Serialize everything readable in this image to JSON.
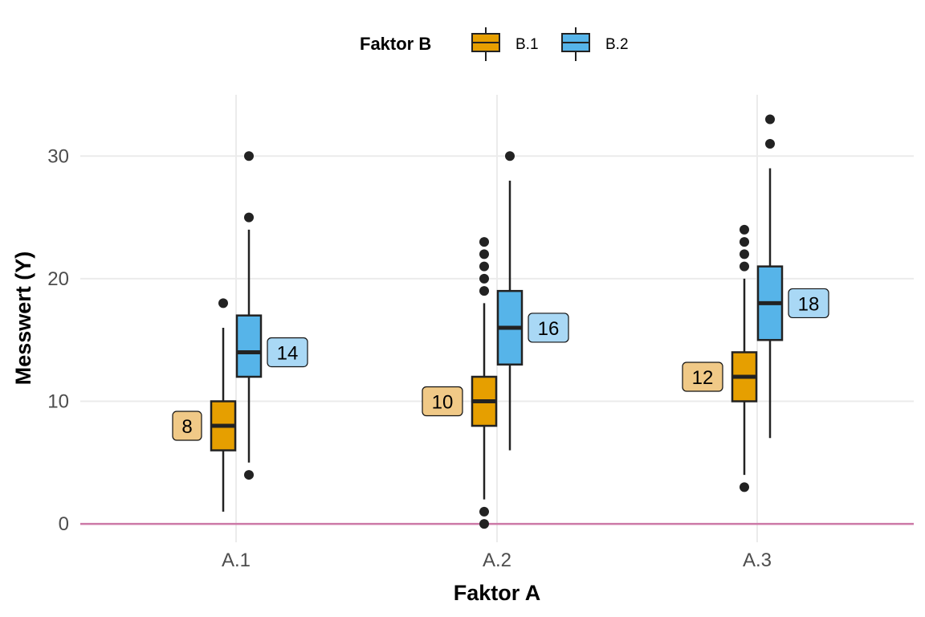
{
  "chart_data": {
    "type": "boxplot",
    "xlabel": "Faktor A",
    "ylabel": "Messwert (Y)",
    "categories": [
      "A.1",
      "A.2",
      "A.3"
    ],
    "ylim": [
      -1.5,
      35
    ],
    "yticks": [
      0,
      10,
      20,
      30
    ],
    "reference_line": 0,
    "grid": true,
    "legend": {
      "title": "Faktor B",
      "position": "top",
      "entries": [
        "B.1",
        "B.2"
      ]
    },
    "colors": {
      "B.1": "#E69F00",
      "B.2": "#56B4E9",
      "B.1_label": "#F0C987",
      "B.2_label": "#A9D8F5",
      "reference_line": "#CC79A7",
      "grid": "#EBEBEB"
    },
    "series": [
      {
        "name": "B.1",
        "boxes": [
          {
            "category": "A.1",
            "min": 1,
            "q1": 6,
            "median": 8,
            "q3": 10,
            "max": 16,
            "outliers": [
              18
            ],
            "label": "8"
          },
          {
            "category": "A.2",
            "min": 2,
            "q1": 8,
            "median": 10,
            "q3": 12,
            "max": 18,
            "outliers": [
              19,
              20,
              21,
              22,
              23,
              1,
              0
            ],
            "label": "10"
          },
          {
            "category": "A.3",
            "min": 4,
            "q1": 10,
            "median": 12,
            "q3": 14,
            "max": 20,
            "outliers": [
              21,
              22,
              23,
              24,
              3
            ],
            "label": "12"
          }
        ]
      },
      {
        "name": "B.2",
        "boxes": [
          {
            "category": "A.1",
            "min": 5,
            "q1": 12,
            "median": 14,
            "q3": 17,
            "max": 24,
            "outliers": [
              25,
              30,
              4
            ],
            "label": "14"
          },
          {
            "category": "A.2",
            "min": 6,
            "q1": 13,
            "median": 16,
            "q3": 19,
            "max": 28,
            "outliers": [
              30
            ],
            "label": "16"
          },
          {
            "category": "A.3",
            "min": 7,
            "q1": 15,
            "median": 18,
            "q3": 21,
            "max": 29,
            "outliers": [
              31,
              33
            ],
            "label": "18"
          }
        ]
      }
    ]
  }
}
